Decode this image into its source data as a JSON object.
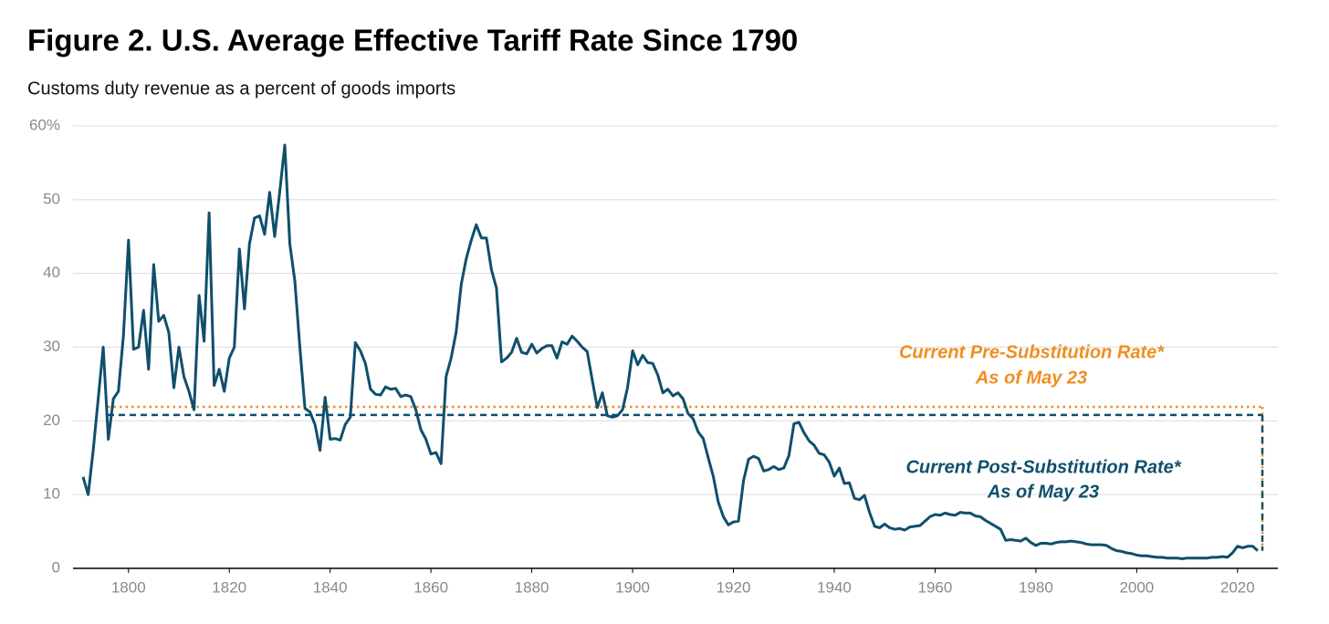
{
  "chart_data": {
    "type": "line",
    "title": "Figure 2. U.S. Average Effective Tariff Rate Since 1790",
    "subtitle": "Customs duty revenue as a percent of goods imports",
    "x": [
      1791,
      1792,
      1793,
      1794,
      1795,
      1796,
      1797,
      1798,
      1799,
      1800,
      1801,
      1802,
      1803,
      1804,
      1805,
      1806,
      1807,
      1808,
      1809,
      1810,
      1811,
      1812,
      1813,
      1814,
      1815,
      1816,
      1817,
      1818,
      1819,
      1820,
      1821,
      1822,
      1823,
      1824,
      1825,
      1826,
      1827,
      1828,
      1829,
      1830,
      1831,
      1832,
      1833,
      1834,
      1835,
      1836,
      1837,
      1838,
      1839,
      1840,
      1841,
      1842,
      1843,
      1844,
      1845,
      1846,
      1847,
      1848,
      1849,
      1850,
      1851,
      1852,
      1853,
      1854,
      1855,
      1856,
      1857,
      1858,
      1859,
      1860,
      1861,
      1862,
      1863,
      1864,
      1865,
      1866,
      1867,
      1868,
      1869,
      1870,
      1871,
      1872,
      1873,
      1874,
      1875,
      1876,
      1877,
      1878,
      1879,
      1880,
      1881,
      1882,
      1883,
      1884,
      1885,
      1886,
      1887,
      1888,
      1889,
      1890,
      1891,
      1892,
      1893,
      1894,
      1895,
      1896,
      1897,
      1898,
      1899,
      1900,
      1901,
      1902,
      1903,
      1904,
      1905,
      1906,
      1907,
      1908,
      1909,
      1910,
      1911,
      1912,
      1913,
      1914,
      1915,
      1916,
      1917,
      1918,
      1919,
      1920,
      1921,
      1922,
      1923,
      1924,
      1925,
      1926,
      1927,
      1928,
      1929,
      1930,
      1931,
      1932,
      1933,
      1934,
      1935,
      1936,
      1937,
      1938,
      1939,
      1940,
      1941,
      1942,
      1943,
      1944,
      1945,
      1946,
      1947,
      1948,
      1949,
      1950,
      1951,
      1952,
      1953,
      1954,
      1955,
      1956,
      1957,
      1958,
      1959,
      1960,
      1961,
      1962,
      1963,
      1964,
      1965,
      1966,
      1967,
      1968,
      1969,
      1970,
      1971,
      1972,
      1973,
      1974,
      1975,
      1976,
      1977,
      1978,
      1979,
      1980,
      1981,
      1982,
      1983,
      1984,
      1985,
      1986,
      1987,
      1988,
      1989,
      1990,
      1991,
      1992,
      1993,
      1994,
      1995,
      1996,
      1997,
      1998,
      1999,
      2000,
      2001,
      2002,
      2003,
      2004,
      2005,
      2006,
      2007,
      2008,
      2009,
      2010,
      2011,
      2012,
      2013,
      2014,
      2015,
      2016,
      2017,
      2018,
      2019,
      2020,
      2021,
      2022,
      2023,
      2024
    ],
    "series": [
      {
        "color": "#0f4f6c",
        "values": [
          12.4,
          10,
          16,
          23,
          30,
          17.5,
          23,
          24,
          31.5,
          44.5,
          29.7,
          30,
          35,
          27,
          41.2,
          33.5,
          34.3,
          32,
          24.5,
          30,
          26,
          24,
          21.5,
          37,
          30.8,
          48.2,
          24.8,
          27,
          24,
          28.5,
          30,
          43.3,
          35.2,
          44,
          47.5,
          47.8,
          45.3,
          51,
          45,
          51,
          57.4,
          44,
          39,
          30,
          21.7,
          21.2,
          19.5,
          16,
          23.2,
          17.5,
          17.6,
          17.4,
          19.5,
          20.5,
          30.6,
          29.5,
          27.8,
          24.3,
          23.6,
          23.5,
          24.6,
          24.3,
          24.4,
          23.3,
          23.5,
          23.3,
          21.5,
          18.8,
          17.5,
          15.5,
          15.7,
          14.2,
          26,
          28.5,
          32,
          38.5,
          42,
          44.5,
          46.6,
          44.8,
          44.8,
          40.5,
          38,
          28,
          28.5,
          29.3,
          31.2,
          29.3,
          29.1,
          30.4,
          29.2,
          29.8,
          30.2,
          30.2,
          28.5,
          30.7,
          30.4,
          31.5,
          30.8,
          30,
          29.4,
          25.5,
          21.8,
          23.8,
          20.7,
          20.5,
          20.7,
          21.5,
          24.5,
          29.5,
          27.6,
          28.9,
          27.9,
          27.8,
          26.2,
          23.8,
          24.3,
          23.4,
          23.8,
          23,
          21,
          20.3,
          18.5,
          17.6,
          15,
          12.5,
          9,
          7,
          5.9,
          6.3,
          6.4,
          11.9,
          14.8,
          15.2,
          14.9,
          13.2,
          13.4,
          13.8,
          13.4,
          13.6,
          15.3,
          19.6,
          19.8,
          18.4,
          17.3,
          16.7,
          15.6,
          15.4,
          14.4,
          12.5,
          13.6,
          11.5,
          11.6,
          9.5,
          9.3,
          9.9,
          7.6,
          5.7,
          5.5,
          6,
          5.5,
          5.3,
          5.4,
          5.2,
          5.6,
          5.7,
          5.8,
          6.4,
          7,
          7.3,
          7.2,
          7.5,
          7.3,
          7.2,
          7.6,
          7.5,
          7.5,
          7.1,
          7,
          6.5,
          6.1,
          5.7,
          5.3,
          3.8,
          3.9,
          3.8,
          3.7,
          4.1,
          3.5,
          3.1,
          3.4,
          3.4,
          3.3,
          3.5,
          3.6,
          3.6,
          3.7,
          3.6,
          3.5,
          3.3,
          3.2,
          3.2,
          3.2,
          3.1,
          2.7,
          2.4,
          2.3,
          2.1,
          2,
          1.8,
          1.7,
          1.7,
          1.6,
          1.5,
          1.5,
          1.4,
          1.4,
          1.4,
          1.3,
          1.4,
          1.4,
          1.4,
          1.4,
          1.4,
          1.5,
          1.5,
          1.6,
          1.5,
          2.1,
          3,
          2.8,
          3,
          3,
          2.4
        ]
      }
    ],
    "reference_lines": [
      {
        "label": "Current Pre-Substitution Rate*",
        "sublabel": "As of May 23",
        "value": 21.9,
        "color": "#ef8e1f",
        "style": "dotted"
      },
      {
        "label": "Current Post-Substitution Rate*",
        "sublabel": "As of May 23",
        "value": 20.8,
        "color": "#0f4f6c",
        "style": "dashed"
      }
    ],
    "xlim": [
      1789,
      2028
    ],
    "xticks": [
      1800,
      1820,
      1840,
      1860,
      1880,
      1900,
      1920,
      1940,
      1960,
      1980,
      2000,
      2020
    ],
    "ylim": [
      0,
      60
    ],
    "yticks": [
      0,
      10,
      20,
      30,
      40,
      50,
      {
        "value": 60,
        "label": "60%"
      }
    ],
    "grid": true
  }
}
